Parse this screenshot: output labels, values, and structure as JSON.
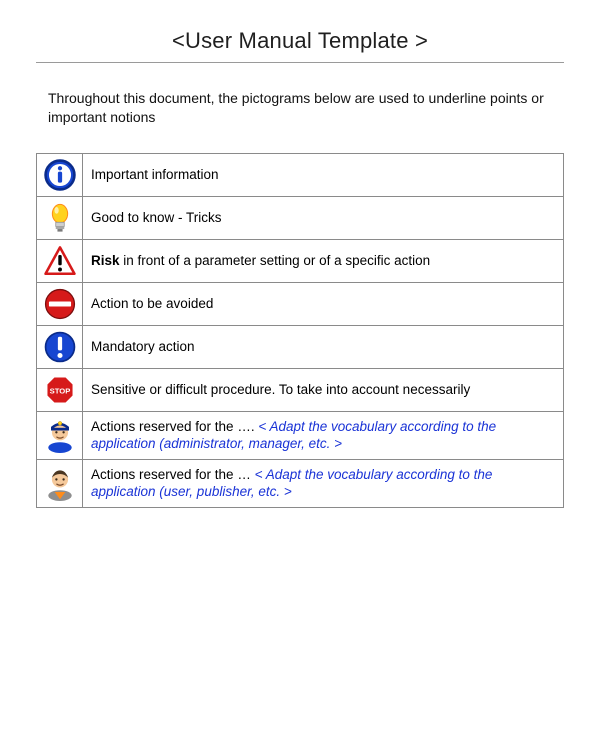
{
  "title": "<User Manual Template >",
  "intro": "Throughout this document, the pictograms below are used to underline points or important notions",
  "rows": [
    {
      "icon": "info",
      "text": "Important information"
    },
    {
      "icon": "bulb",
      "text": "Good to know - Tricks"
    },
    {
      "icon": "warning",
      "bold": "Risk",
      "text": " in front of a parameter setting or of a specific action"
    },
    {
      "icon": "noentry",
      "text": "Action to be avoided"
    },
    {
      "icon": "mandatory",
      "text": "Mandatory action"
    },
    {
      "icon": "stop",
      "text": "Sensitive or difficult procedure. To take into account necessarily"
    },
    {
      "icon": "admin",
      "text": "Actions reserved for the …. ",
      "note": "< Adapt the vocabulary according to the application (administrator, manager, etc. >"
    },
    {
      "icon": "user",
      "text": "Actions reserved for the … ",
      "note": "< Adapt the vocabulary according to the application (user, publisher, etc. >"
    }
  ],
  "colors": {
    "blue": "#1746d1",
    "blue_dark": "#0a2b8a",
    "red": "#d61a1a",
    "yellow": "#ffd21f",
    "orange": "#ff8c1a",
    "skin": "#f5c99b",
    "grey": "#8e8e8e",
    "white": "#ffffff",
    "black": "#000000"
  }
}
